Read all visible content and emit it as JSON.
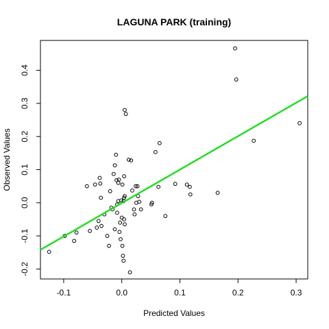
{
  "chart_data": {
    "type": "scatter",
    "title": "LAGUNA PARK (training)",
    "xlabel": "Predicted Values",
    "ylabel": "Observed Values",
    "xlim": [
      -0.14,
      0.32
    ],
    "ylim": [
      -0.23,
      0.49
    ],
    "x_ticks": [
      {
        "value": -0.1,
        "label": "-0.1"
      },
      {
        "value": 0.0,
        "label": "0.0"
      },
      {
        "value": 0.1,
        "label": "0.1"
      },
      {
        "value": 0.2,
        "label": "0.2"
      },
      {
        "value": 0.3,
        "label": "0.3"
      }
    ],
    "y_ticks": [
      {
        "value": -0.2,
        "label": "-0.2"
      },
      {
        "value": -0.1,
        "label": "-0.1"
      },
      {
        "value": 0.0,
        "label": "0.0"
      },
      {
        "value": 0.1,
        "label": "0.1"
      },
      {
        "value": 0.2,
        "label": "0.2"
      },
      {
        "value": 0.3,
        "label": "0.3"
      },
      {
        "value": 0.4,
        "label": "0.4"
      }
    ],
    "grid": false,
    "point_color": "#000000",
    "fit_line": {
      "color": "#22dd22",
      "points": [
        [
          -0.14,
          -0.142
        ],
        [
          0.32,
          0.322
        ]
      ]
    },
    "points": [
      [
        -0.125,
        -0.148
      ],
      [
        -0.098,
        -0.1
      ],
      [
        -0.082,
        -0.115
      ],
      [
        -0.078,
        -0.09
      ],
      [
        -0.06,
        0.05
      ],
      [
        -0.055,
        -0.085
      ],
      [
        -0.046,
        0.055
      ],
      [
        -0.043,
        -0.075
      ],
      [
        -0.04,
        -0.055
      ],
      [
        -0.038,
        0.075
      ],
      [
        -0.037,
        0.058
      ],
      [
        -0.036,
        0.015
      ],
      [
        -0.035,
        -0.07
      ],
      [
        -0.03,
        -0.035
      ],
      [
        -0.025,
        -0.1
      ],
      [
        -0.022,
        -0.13
      ],
      [
        -0.02,
        0.035
      ],
      [
        -0.018,
        -0.015
      ],
      [
        -0.016,
        -0.02
      ],
      [
        -0.014,
        0.087
      ],
      [
        -0.012,
        -0.08
      ],
      [
        -0.012,
        0.113
      ],
      [
        -0.01,
        0.145
      ],
      [
        -0.009,
        0.068
      ],
      [
        -0.008,
        -0.03
      ],
      [
        -0.008,
        -0.005
      ],
      [
        -0.006,
        0.06
      ],
      [
        -0.006,
        0.005
      ],
      [
        -0.005,
        0.07
      ],
      [
        -0.004,
        -0.088
      ],
      [
        -0.003,
        -0.06
      ],
      [
        -0.002,
        -0.11
      ],
      [
        -0.001,
        0.007
      ],
      [
        0.0,
        -0.045
      ],
      [
        0.001,
        0.055
      ],
      [
        0.001,
        -0.13
      ],
      [
        0.002,
        -0.16
      ],
      [
        0.003,
        0.005
      ],
      [
        0.003,
        -0.175
      ],
      [
        0.004,
        -0.05
      ],
      [
        0.004,
        0.08
      ],
      [
        0.004,
        0.015
      ],
      [
        0.005,
        -0.065
      ],
      [
        0.005,
        0.02
      ],
      [
        0.005,
        0.28
      ],
      [
        0.007,
        0.268
      ],
      [
        0.012,
        0.13
      ],
      [
        0.014,
        -0.21
      ],
      [
        0.016,
        0.128
      ],
      [
        0.018,
        0.037
      ],
      [
        0.021,
        -0.02
      ],
      [
        0.022,
        -0.035
      ],
      [
        0.024,
        0.05
      ],
      [
        0.025,
        0.0
      ],
      [
        0.027,
        0.05
      ],
      [
        0.028,
        0.02
      ],
      [
        0.03,
        0.003
      ],
      [
        0.033,
        -0.02
      ],
      [
        0.051,
        -0.005
      ],
      [
        0.052,
        0.0
      ],
      [
        0.058,
        0.153
      ],
      [
        0.063,
        0.048
      ],
      [
        0.065,
        0.18
      ],
      [
        0.075,
        -0.04
      ],
      [
        0.092,
        0.057
      ],
      [
        0.112,
        0.055
      ],
      [
        0.117,
        0.048
      ],
      [
        0.118,
        0.025
      ],
      [
        0.165,
        0.03
      ],
      [
        0.195,
        0.466
      ],
      [
        0.197,
        0.372
      ],
      [
        0.227,
        0.187
      ],
      [
        0.306,
        0.24
      ]
    ]
  }
}
